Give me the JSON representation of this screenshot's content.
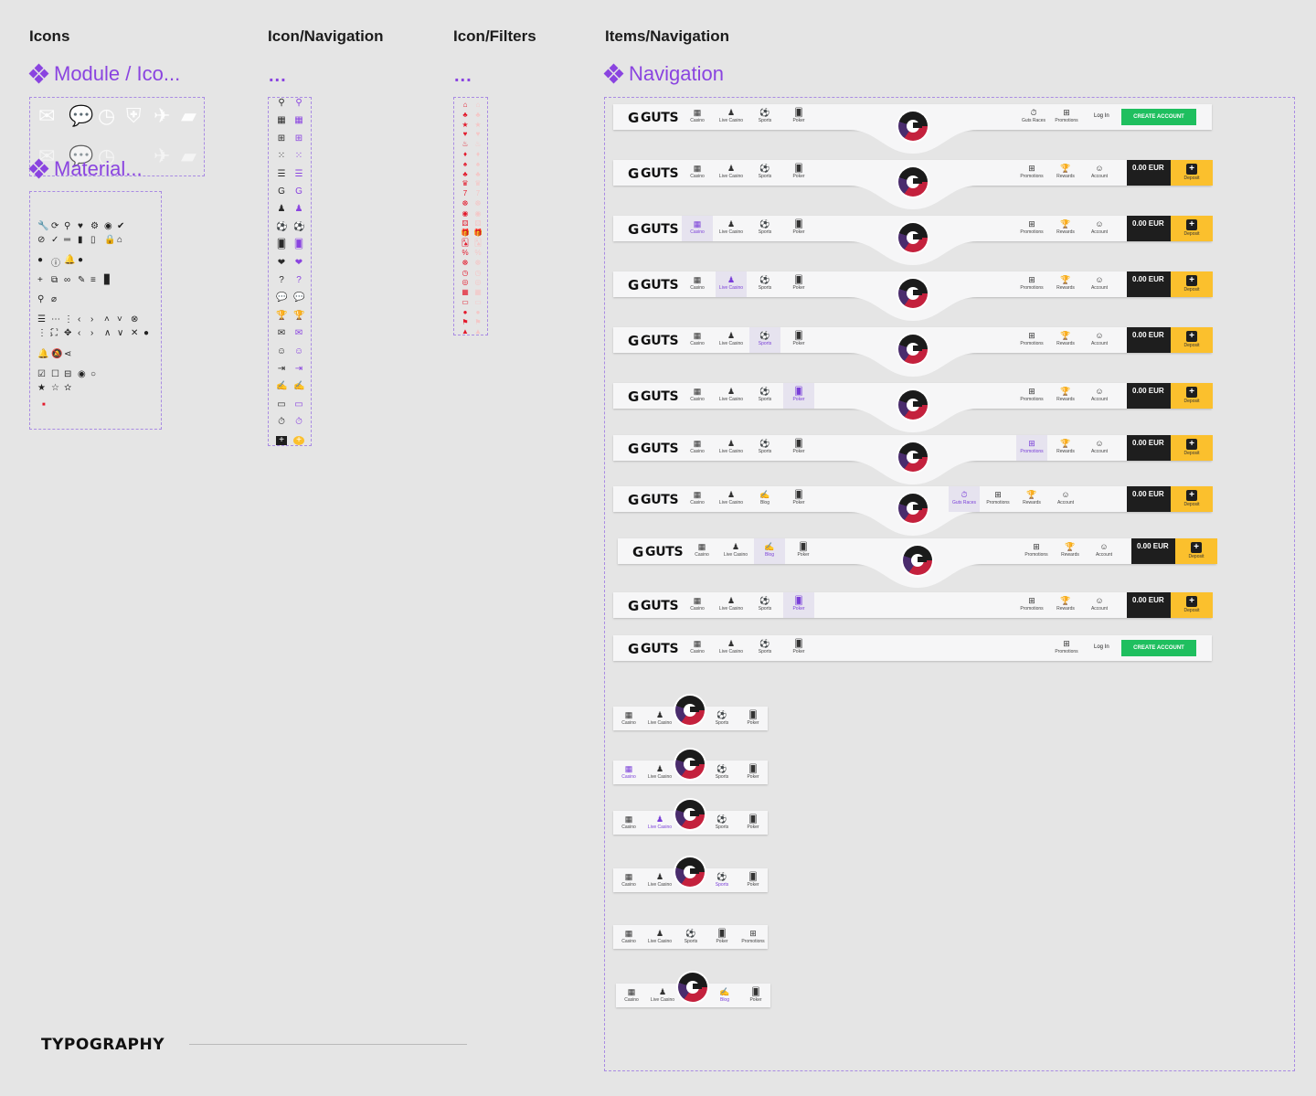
{
  "sections": {
    "icons": "Icons",
    "icon_navigation": "Icon/Navigation",
    "icon_filters": "Icon/Filters",
    "items_navigation": "Items/Navigation"
  },
  "components": {
    "module_icons": "Module / Ico...",
    "material": "Material...",
    "nav_dots": "...",
    "filters_dots": "...",
    "navigation": "Navigation"
  },
  "nav": {
    "logo": "GUTS",
    "casino": "Casino",
    "live_casino": "Live Casino",
    "sports": "Sports",
    "poker": "Poker",
    "blog": "Blog",
    "guts_races": "Guts Races",
    "promotions": "Promotions",
    "rewards": "Rewards",
    "account": "Account",
    "login": "Log In",
    "create_account": "CREATE ACCOUNT",
    "balance": "0.00 EUR",
    "deposit": "Deposit"
  },
  "typography": "TYPOGRAPHY",
  "colors": {
    "accent": "#8a44e0",
    "create": "#1fbf5f",
    "deposit": "#fbc02d",
    "balance_bg": "#1e1e1e",
    "filter_red": "#e3192b"
  }
}
